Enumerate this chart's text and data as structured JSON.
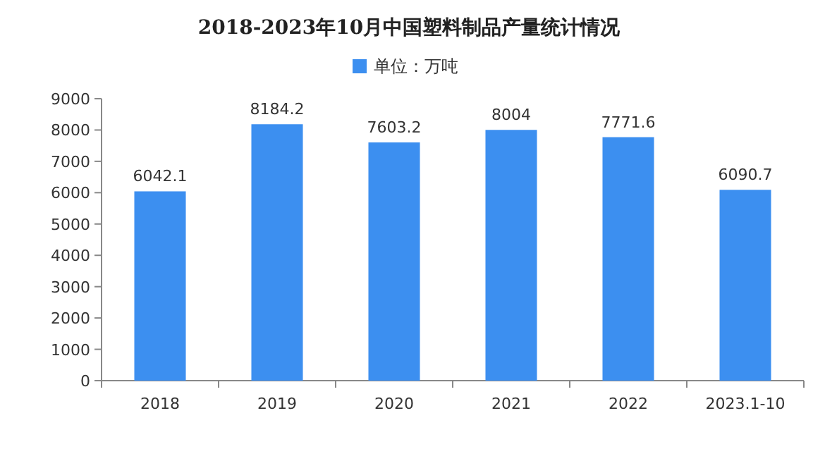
{
  "chart_data": {
    "type": "bar",
    "title": "2018-2023年10月中国塑料制品产量统计情况",
    "categories": [
      "2018",
      "2019",
      "2020",
      "2021",
      "2022",
      "2023.1-10"
    ],
    "series": [
      {
        "name": "单位：万吨",
        "color": "#3c8ff0",
        "values": [
          6042.1,
          8184.2,
          7603.2,
          8004,
          7771.6,
          6090.7
        ]
      }
    ],
    "ylim": [
      0,
      9000
    ],
    "yticks": [
      0,
      1000,
      2000,
      3000,
      4000,
      5000,
      6000,
      7000,
      8000,
      9000
    ],
    "data_labels": true,
    "legend": "top"
  }
}
